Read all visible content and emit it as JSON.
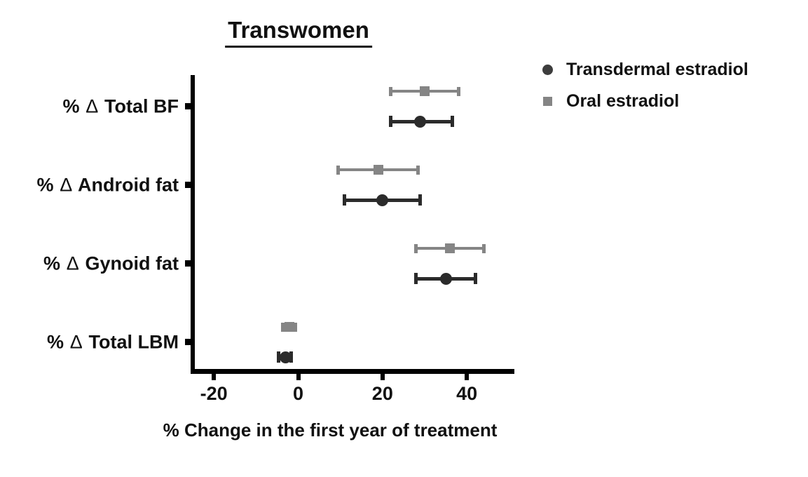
{
  "page": {
    "background": "#ffffff",
    "text_color": "#111111",
    "axis_color": "#000000"
  },
  "chart_data": {
    "type": "scatter",
    "subtype": "horizontal-dot-plot-with-error-bars",
    "title": "Transwomen",
    "xlabel": "% Change in the first year of treatment",
    "ylabel": "",
    "categories": [
      "% ∆ Total BF",
      "% ∆ Android fat",
      "% ∆ Gynoid fat",
      "% ∆ Total LBM"
    ],
    "x_ticks": [
      -20,
      0,
      20,
      40
    ],
    "xlim": [
      -25.5,
      51.5
    ],
    "grid": false,
    "legend_position": "top-right",
    "series": [
      {
        "name": "Transdermal estradiol",
        "marker": "circle",
        "color": "#2b2b2b",
        "values": [
          29,
          20,
          35,
          -3
        ],
        "error_low": [
          22,
          11,
          28,
          -4.7
        ],
        "error_high": [
          36.5,
          29,
          42,
          -1.6
        ]
      },
      {
        "name": "Oral estradiol",
        "marker": "square",
        "color": "#858585",
        "values": [
          30,
          19,
          36,
          -2
        ],
        "error_low": [
          22,
          9.5,
          28,
          -3.7
        ],
        "error_high": [
          38,
          28.5,
          44,
          -0.6
        ]
      }
    ]
  }
}
